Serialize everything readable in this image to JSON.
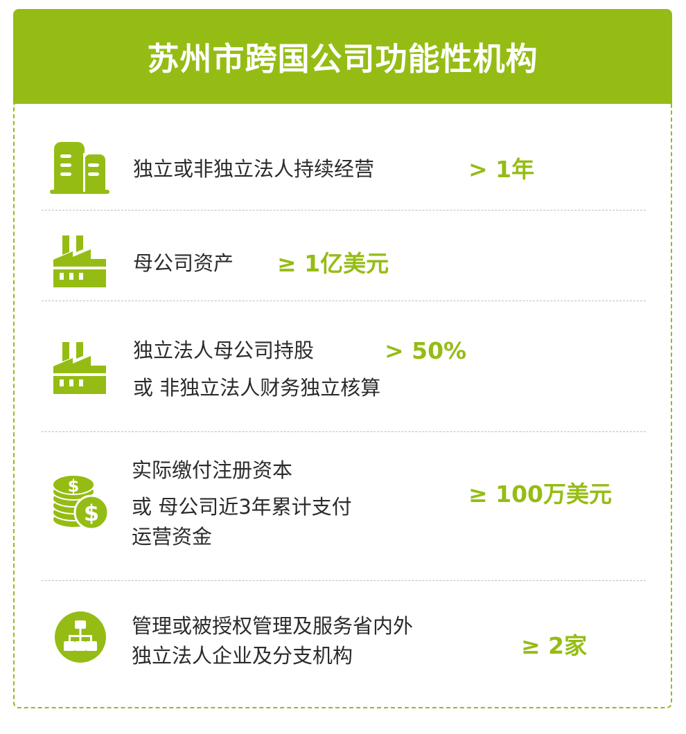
{
  "title": "苏州市跨国公司功能性机构",
  "accent_color": "#95bc14",
  "rows": [
    {
      "icon": "office-buildings-icon",
      "lines": [
        "独立或非独立法人持续经营"
      ],
      "value": "> 1年"
    },
    {
      "icon": "factory-icon",
      "lines": [
        "母公司资产"
      ],
      "value": "≥ 1亿美元"
    },
    {
      "icon": "factory-icon",
      "lines": [
        "独立法人母公司持股",
        "或 非独立法人财务独立核算"
      ],
      "value": "> 50%"
    },
    {
      "icon": "coins-dollar-icon",
      "lines": [
        "实际缴付注册资本",
        "或 母公司近3年累计支付",
        "运营资金"
      ],
      "value": "≥ 100万美元"
    },
    {
      "icon": "org-chart-icon",
      "lines": [
        "管理或被授权管理及服务省内外",
        "独立法人企业及分支机构"
      ],
      "value": "≥ 2家"
    }
  ]
}
